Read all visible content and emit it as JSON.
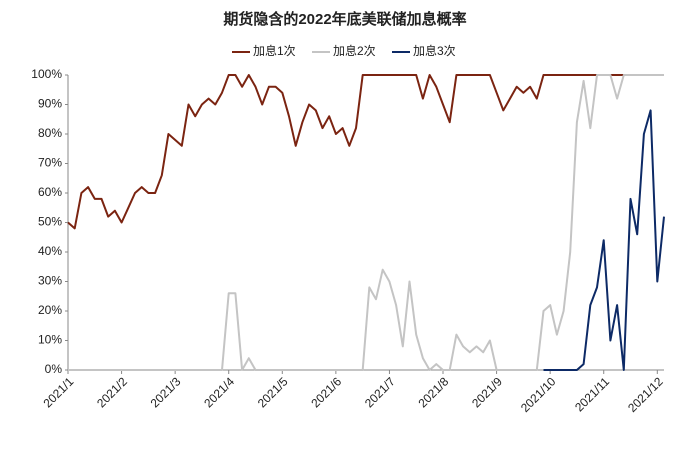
{
  "chart_data": {
    "type": "line",
    "title": "期货隐含的2022年底美联储加息概率",
    "categories": [
      "2021/1",
      null,
      null,
      null,
      null,
      null,
      null,
      null,
      "2021/2",
      null,
      null,
      null,
      null,
      null,
      null,
      null,
      "2021/3",
      null,
      null,
      null,
      null,
      null,
      null,
      null,
      "2021/4",
      null,
      null,
      null,
      null,
      null,
      null,
      null,
      "2021/5",
      null,
      null,
      null,
      null,
      null,
      null,
      null,
      "2021/6",
      null,
      null,
      null,
      null,
      null,
      null,
      null,
      "2021/7",
      null,
      null,
      null,
      null,
      null,
      null,
      null,
      "2021/8",
      null,
      null,
      null,
      null,
      null,
      null,
      null,
      "2021/9",
      null,
      null,
      null,
      null,
      null,
      null,
      null,
      "2021/10",
      null,
      null,
      null,
      null,
      null,
      null,
      null,
      "2021/11",
      null,
      null,
      null,
      null,
      null,
      null,
      null,
      "2021/12",
      null
    ],
    "series": [
      {
        "name": "加息1次",
        "color": "#7b2411",
        "values": [
          50,
          48,
          60,
          62,
          58,
          58,
          52,
          54,
          50,
          55,
          60,
          62,
          60,
          60,
          66,
          80,
          78,
          76,
          90,
          86,
          90,
          92,
          90,
          94,
          100,
          100,
          96,
          100,
          96,
          90,
          96,
          96,
          94,
          86,
          76,
          84,
          90,
          88,
          82,
          86,
          80,
          82,
          76,
          82,
          100,
          100,
          100,
          100,
          100,
          100,
          100,
          100,
          100,
          92,
          100,
          96,
          90,
          84,
          100,
          100,
          100,
          100,
          100,
          100,
          94,
          88,
          92,
          96,
          94,
          96,
          92,
          100,
          100,
          100,
          100,
          100,
          100,
          100,
          100,
          100,
          100,
          100,
          100,
          100,
          100,
          100,
          100,
          100,
          100,
          100
        ]
      },
      {
        "name": "加息2次",
        "color": "#c4c4c4",
        "values": [
          0,
          0,
          0,
          0,
          0,
          0,
          0,
          0,
          0,
          0,
          0,
          0,
          0,
          0,
          0,
          0,
          0,
          0,
          0,
          0,
          0,
          0,
          0,
          0,
          26,
          26,
          0,
          4,
          0,
          0,
          0,
          0,
          0,
          0,
          0,
          0,
          0,
          0,
          0,
          0,
          0,
          0,
          0,
          0,
          0,
          28,
          24,
          34,
          30,
          22,
          8,
          30,
          12,
          4,
          0,
          2,
          0,
          0,
          12,
          8,
          6,
          8,
          6,
          10,
          0,
          0,
          0,
          0,
          0,
          0,
          0,
          20,
          22,
          12,
          20,
          40,
          84,
          98,
          82,
          100,
          100,
          100,
          92,
          100,
          100,
          100,
          100,
          100,
          100,
          100
        ]
      },
      {
        "name": "加息3次",
        "color": "#0d2a66",
        "values": [
          null,
          null,
          null,
          null,
          null,
          null,
          null,
          null,
          null,
          null,
          null,
          null,
          null,
          null,
          null,
          null,
          null,
          null,
          null,
          null,
          null,
          null,
          null,
          null,
          null,
          null,
          null,
          null,
          null,
          null,
          null,
          null,
          null,
          null,
          null,
          null,
          null,
          null,
          null,
          null,
          null,
          null,
          null,
          null,
          null,
          null,
          null,
          null,
          null,
          null,
          null,
          null,
          null,
          null,
          null,
          null,
          null,
          null,
          null,
          null,
          null,
          null,
          null,
          null,
          null,
          null,
          null,
          null,
          null,
          null,
          null,
          0,
          0,
          0,
          0,
          0,
          0,
          2,
          22,
          28,
          44,
          10,
          22,
          0,
          58,
          46,
          80,
          88,
          30,
          52
        ]
      }
    ],
    "ylim": [
      0,
      100
    ],
    "yticks": [
      {
        "value": 0,
        "label": "0%"
      },
      {
        "value": 10,
        "label": "10%"
      },
      {
        "value": 20,
        "label": "20%"
      },
      {
        "value": 30,
        "label": "30%"
      },
      {
        "value": 40,
        "label": "40%"
      },
      {
        "value": 50,
        "label": "50%"
      },
      {
        "value": 60,
        "label": "60%"
      },
      {
        "value": 70,
        "label": "70%"
      },
      {
        "value": 80,
        "label": "80%"
      },
      {
        "value": 90,
        "label": "90%"
      },
      {
        "value": 100,
        "label": "100%"
      }
    ],
    "grid": false,
    "legend": "top"
  }
}
